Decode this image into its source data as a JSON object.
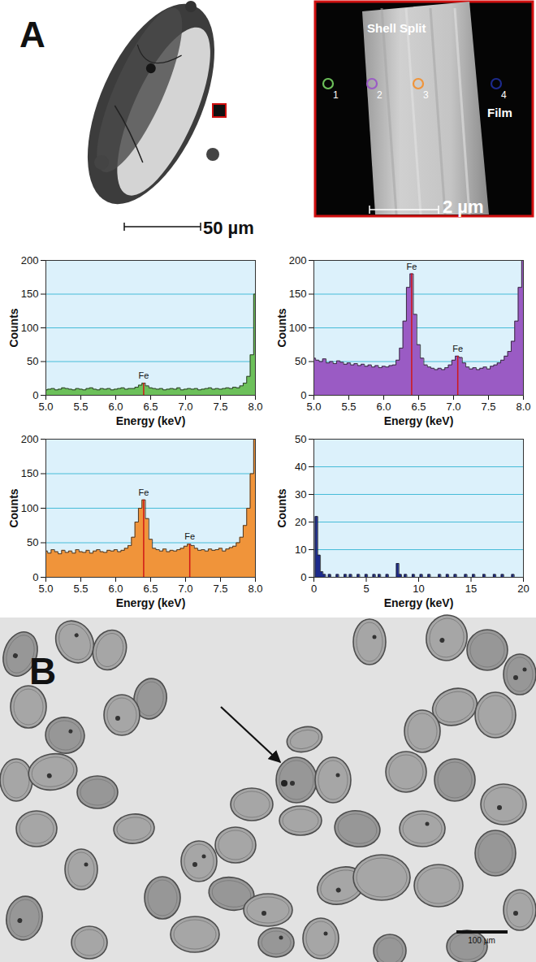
{
  "panel_A": {
    "label": "A",
    "scale_bar": "50 µm",
    "inset": {
      "labels": [
        "Shell Split",
        "Film"
      ],
      "scale_bar": "2 µm",
      "points": [
        {
          "label": "1",
          "color": "#6cc05a"
        },
        {
          "label": "2",
          "color": "#9a5bc4"
        },
        {
          "label": "3",
          "color": "#f0943a"
        },
        {
          "label": "4",
          "color": "#1c2a8c"
        }
      ]
    }
  },
  "chart_data": [
    {
      "type": "area",
      "color": "#6cc05a",
      "xlabel": "Energy (keV)",
      "ylabel": "Counts",
      "grid": true,
      "xlim": [
        5,
        8.0
      ],
      "xticks": [
        {
          "value": 5,
          "label": "5.0"
        },
        5.5,
        {
          "value": 6,
          "label": "6.0"
        },
        6.5,
        {
          "value": 7,
          "label": "7.0"
        },
        7.5,
        {
          "value": 8,
          "label": "8.0"
        }
      ],
      "ylim": [
        0,
        200
      ],
      "yticks": [
        0,
        50,
        100,
        150,
        200
      ],
      "x": [
        5,
        5.05,
        5.1,
        5.15,
        5.2,
        5.25,
        5.3,
        5.35,
        5.4,
        5.45,
        5.5,
        5.55,
        5.6,
        5.65,
        5.7,
        5.75,
        5.8,
        5.85,
        5.9,
        5.95,
        6,
        6.05,
        6.1,
        6.15,
        6.2,
        6.25,
        6.3,
        6.35,
        6.4,
        6.45,
        6.5,
        6.55,
        6.6,
        6.65,
        6.7,
        6.75,
        6.8,
        6.85,
        6.9,
        6.95,
        7,
        7.05,
        7.1,
        7.15,
        7.2,
        7.25,
        7.3,
        7.35,
        7.4,
        7.45,
        7.5,
        7.55,
        7.6,
        7.65,
        7.7,
        7.75,
        7.8,
        7.85,
        7.9,
        7.95,
        8
      ],
      "values": [
        8,
        9,
        10,
        8,
        9,
        11,
        10,
        9,
        8,
        10,
        9,
        8,
        10,
        11,
        9,
        8,
        10,
        9,
        10,
        8,
        9,
        10,
        11,
        9,
        10,
        10,
        12,
        15,
        18,
        14,
        11,
        10,
        9,
        10,
        8,
        9,
        10,
        9,
        11,
        8,
        9,
        10,
        9,
        10,
        8,
        9,
        10,
        11,
        9,
        10,
        9,
        10,
        11,
        10,
        12,
        11,
        14,
        18,
        28,
        60,
        150
      ],
      "annotations": [
        {
          "x": 6.4,
          "label": "Fe"
        }
      ]
    },
    {
      "type": "area",
      "color": "#9a5bc4",
      "xlabel": "Energy (keV)",
      "ylabel": "Counts",
      "grid": true,
      "xlim": [
        5,
        8.0
      ],
      "xticks": [
        {
          "value": 5,
          "label": "5.0"
        },
        5.5,
        {
          "value": 6,
          "label": "6.0"
        },
        6.5,
        {
          "value": 7,
          "label": "7.0"
        },
        7.5,
        {
          "value": 8,
          "label": "8.0"
        }
      ],
      "ylim": [
        0,
        200
      ],
      "yticks": [
        0,
        50,
        100,
        150,
        200
      ],
      "x": [
        5,
        5.05,
        5.1,
        5.15,
        5.2,
        5.25,
        5.3,
        5.35,
        5.4,
        5.45,
        5.5,
        5.55,
        5.6,
        5.65,
        5.7,
        5.75,
        5.8,
        5.85,
        5.9,
        5.95,
        6,
        6.05,
        6.1,
        6.15,
        6.2,
        6.25,
        6.3,
        6.35,
        6.4,
        6.45,
        6.5,
        6.55,
        6.6,
        6.65,
        6.7,
        6.75,
        6.8,
        6.85,
        6.9,
        6.95,
        7,
        7.05,
        7.1,
        7.15,
        7.2,
        7.25,
        7.3,
        7.35,
        7.4,
        7.45,
        7.5,
        7.55,
        7.6,
        7.65,
        7.7,
        7.75,
        7.8,
        7.85,
        7.9,
        7.95,
        8
      ],
      "values": [
        55,
        52,
        50,
        54,
        48,
        50,
        47,
        51,
        49,
        46,
        48,
        45,
        47,
        44,
        46,
        43,
        45,
        42,
        44,
        41,
        43,
        42,
        44,
        45,
        52,
        70,
        110,
        160,
        180,
        120,
        75,
        55,
        45,
        42,
        40,
        38,
        40,
        38,
        41,
        45,
        52,
        58,
        56,
        48,
        42,
        39,
        41,
        38,
        40,
        42,
        39,
        43,
        45,
        48,
        52,
        58,
        65,
        80,
        110,
        160,
        200
      ],
      "annotations": [
        {
          "x": 6.4,
          "label": "Fe"
        },
        {
          "x": 7.06,
          "label": "Fe"
        }
      ]
    },
    {
      "type": "area",
      "color": "#f0943a",
      "xlabel": "Energy (keV)",
      "ylabel": "Counts",
      "grid": true,
      "xlim": [
        5,
        8.0
      ],
      "xticks": [
        {
          "value": 5,
          "label": "5.0"
        },
        5.5,
        {
          "value": 6,
          "label": "6.0"
        },
        6.5,
        {
          "value": 7,
          "label": "7.0"
        },
        7.5,
        {
          "value": 8,
          "label": "8.0"
        }
      ],
      "ylim": [
        0,
        200
      ],
      "yticks": [
        0,
        50,
        100,
        150,
        200
      ],
      "x": [
        5,
        5.05,
        5.1,
        5.15,
        5.2,
        5.25,
        5.3,
        5.35,
        5.4,
        5.45,
        5.5,
        5.55,
        5.6,
        5.65,
        5.7,
        5.75,
        5.8,
        5.85,
        5.9,
        5.95,
        6,
        6.05,
        6.1,
        6.15,
        6.2,
        6.25,
        6.3,
        6.35,
        6.4,
        6.45,
        6.5,
        6.55,
        6.6,
        6.65,
        6.7,
        6.75,
        6.8,
        6.85,
        6.9,
        6.95,
        7,
        7.05,
        7.1,
        7.15,
        7.2,
        7.25,
        7.3,
        7.35,
        7.4,
        7.45,
        7.5,
        7.55,
        7.6,
        7.65,
        7.7,
        7.75,
        7.8,
        7.85,
        7.9,
        7.95,
        8
      ],
      "values": [
        38,
        35,
        40,
        37,
        34,
        39,
        36,
        38,
        35,
        40,
        37,
        36,
        39,
        35,
        38,
        40,
        37,
        36,
        39,
        38,
        40,
        37,
        39,
        42,
        46,
        58,
        80,
        100,
        112,
        85,
        55,
        42,
        40,
        38,
        41,
        37,
        39,
        38,
        40,
        42,
        45,
        48,
        46,
        42,
        39,
        40,
        38,
        41,
        39,
        40,
        42,
        38,
        41,
        43,
        45,
        50,
        58,
        75,
        100,
        150,
        200
      ],
      "annotations": [
        {
          "x": 6.4,
          "label": "Fe"
        },
        {
          "x": 7.06,
          "label": "Fe"
        }
      ]
    },
    {
      "type": "area",
      "color": "#1c2a8c",
      "xlabel": "Energy (keV)",
      "ylabel": "Counts",
      "grid": true,
      "xlim": [
        0,
        20
      ],
      "xticks": [
        0,
        5,
        10,
        15,
        20
      ],
      "ylim": [
        0,
        50
      ],
      "yticks": [
        0,
        10,
        20,
        30,
        40,
        50
      ],
      "x": [
        0,
        0.25,
        0.5,
        0.75,
        1,
        1.25,
        1.5,
        1.75,
        2,
        2.25,
        2.5,
        2.75,
        3,
        3.25,
        3.5,
        3.75,
        4,
        4.25,
        4.5,
        4.75,
        5,
        5.25,
        5.5,
        5.75,
        6,
        6.25,
        6.5,
        6.75,
        7,
        7.25,
        7.5,
        7.75,
        8,
        8.25,
        8.5,
        8.75,
        9,
        9.25,
        9.5,
        9.75,
        10,
        10.25,
        10.5,
        10.75,
        11,
        11.25,
        11.5,
        11.75,
        12,
        12.25,
        12.5,
        12.75,
        13,
        13.25,
        13.5,
        13.75,
        14,
        14.25,
        14.5,
        14.75,
        15,
        15.25,
        15.5,
        15.75,
        16,
        16.25,
        16.5,
        16.75,
        17,
        17.25,
        17.5,
        17.75,
        18,
        18.25,
        18.5,
        18.75,
        19,
        19.25,
        19.5,
        19.75,
        20
      ],
      "values": [
        0,
        22,
        8,
        2,
        1,
        0,
        1,
        0,
        0,
        1,
        0,
        0,
        1,
        0,
        1,
        0,
        0,
        1,
        0,
        0,
        1,
        0,
        0,
        1,
        0,
        1,
        0,
        0,
        1,
        0,
        0,
        0,
        5,
        1,
        0,
        1,
        0,
        0,
        1,
        0,
        0,
        1,
        0,
        0,
        1,
        0,
        0,
        0,
        1,
        0,
        0,
        1,
        0,
        0,
        1,
        0,
        0,
        0,
        1,
        0,
        0,
        1,
        0,
        0,
        0,
        1,
        0,
        0,
        0,
        1,
        0,
        0,
        1,
        0,
        0,
        0,
        1,
        0,
        0,
        0,
        0
      ],
      "annotations": []
    }
  ],
  "panel_B": {
    "label": "B",
    "scale_bar": "100 µm"
  }
}
